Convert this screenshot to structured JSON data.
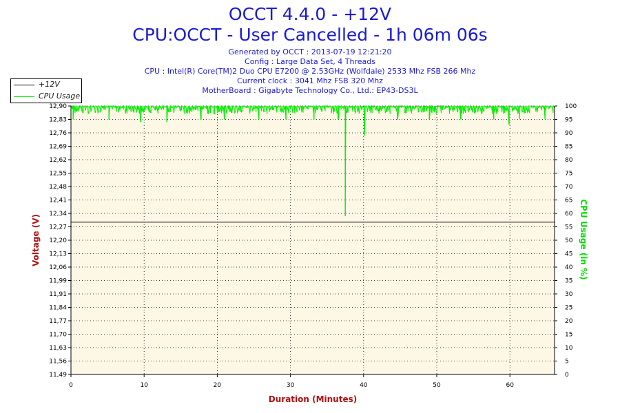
{
  "header": {
    "title_line1": "OCCT 4.4.0 - +12V",
    "title_line2": "CPU:OCCT - User Cancelled - 1h 06m 06s",
    "info_lines": [
      "Generated by OCCT : 2013-07-19 12:21:20",
      "Config : Large Data Set, 4 Threads",
      "CPU : Intel(R) Core(TM)2 Duo CPU E7200 @ 2.53GHz (Wolfdale) 2533 Mhz FSB 266 Mhz",
      "Current clock : 3041 Mhz FSB 320 Mhz",
      "MotherBoard : Gigabyte Technology Co., Ltd.: EP43-DS3L"
    ]
  },
  "legend": [
    {
      "label": "+12V",
      "color": "#000000"
    },
    {
      "label": "CPU Usage",
      "color": "#00ee00"
    }
  ],
  "colors": {
    "voltage": "#000000",
    "cpu": "#00ee00",
    "plot_bg": "#fdf7e6",
    "left_axis_title": "#b01010",
    "right_axis_title": "#00dd00",
    "x_axis_title": "#b01010"
  },
  "chart_data": {
    "type": "line",
    "xlabel": "Duration (Minutes)",
    "ylabel_left": "Voltage (V)",
    "ylabel_right": "CPU Usage (in %)",
    "xlim": [
      0,
      66.1
    ],
    "ylim_left": [
      11.49,
      12.9
    ],
    "ylim_right": [
      0,
      100
    ],
    "x_ticks": [
      "0",
      "10",
      "20",
      "30",
      "40",
      "50",
      "60"
    ],
    "y_left_ticks": [
      "12,90",
      "12,83",
      "12,76",
      "12,69",
      "12,62",
      "12,55",
      "12,48",
      "12,41",
      "12,34",
      "12,27",
      "12,20",
      "12,13",
      "12,06",
      "11,99",
      "11,91",
      "11,84",
      "11,77",
      "11,70",
      "11,63",
      "11,56",
      "11,49"
    ],
    "y_right_ticks": [
      "100",
      "95",
      "90",
      "85",
      "80",
      "75",
      "70",
      "65",
      "60",
      "55",
      "50",
      "45",
      "40",
      "35",
      "30",
      "25",
      "20",
      "15",
      "10",
      "5",
      "0"
    ],
    "grid": true,
    "legend_position": "top-left",
    "series": [
      {
        "name": "+12V",
        "axis": "left",
        "x": [
          0,
          66.1
        ],
        "values": [
          12.29,
          12.29
        ]
      },
      {
        "name": "CPU Usage",
        "axis": "right",
        "baseline_range": [
          97,
          100
        ],
        "dips": [
          {
            "x": 0.3,
            "value": 95
          },
          {
            "x": 5.2,
            "value": 95
          },
          {
            "x": 9.5,
            "value": 94
          },
          {
            "x": 13.1,
            "value": 94
          },
          {
            "x": 17.8,
            "value": 95
          },
          {
            "x": 21.0,
            "value": 95
          },
          {
            "x": 25.7,
            "value": 95
          },
          {
            "x": 29.4,
            "value": 95
          },
          {
            "x": 33.2,
            "value": 95
          },
          {
            "x": 36.5,
            "value": 95
          },
          {
            "x": 37.5,
            "value": 59
          },
          {
            "x": 40.1,
            "value": 89
          },
          {
            "x": 44.6,
            "value": 95
          },
          {
            "x": 49.0,
            "value": 95
          },
          {
            "x": 53.3,
            "value": 95
          },
          {
            "x": 57.8,
            "value": 95
          },
          {
            "x": 59.9,
            "value": 93
          },
          {
            "x": 61.3,
            "value": 95
          },
          {
            "x": 64.8,
            "value": 95
          }
        ]
      }
    ]
  }
}
